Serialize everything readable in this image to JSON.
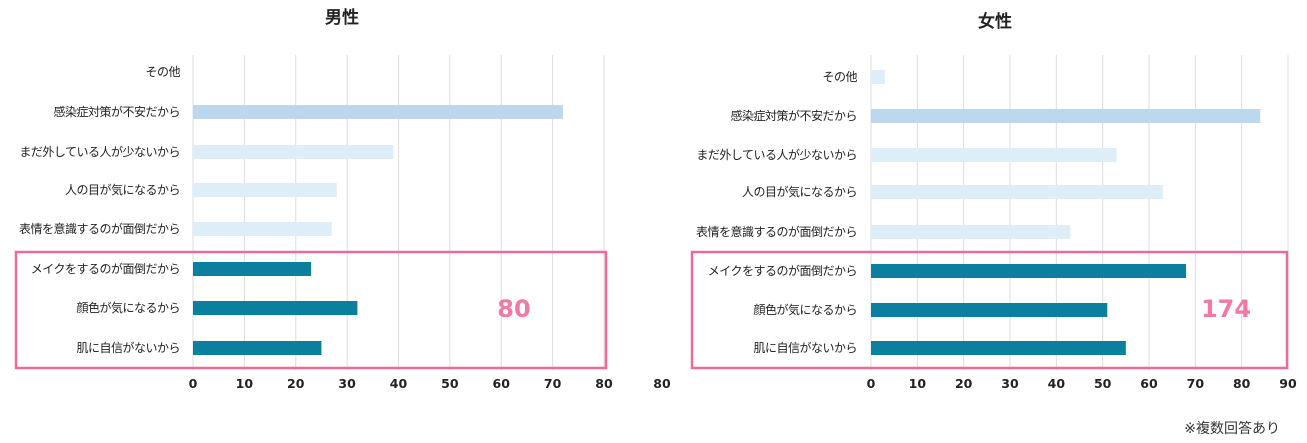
{
  "note": "※複数回答あり",
  "colors": {
    "infection": "#bdd7ee",
    "light": "#ddeef9",
    "dark": "#0b7f9e",
    "highlight": "#ee6a9b",
    "grid": "#dddddd"
  },
  "chart_data": [
    {
      "type": "bar",
      "orientation": "horizontal",
      "title": "男性",
      "categories": [
        "その他",
        "感染症対策が不安だから",
        "まだ外している人が少ないから",
        "人の目が気になるから",
        "表情を意識するのが面倒だから",
        "メイクをするのが面倒だから",
        "顔色が気になるから",
        "肌に自信がないから"
      ],
      "values": [
        0,
        72,
        39,
        28,
        27,
        23,
        32,
        25
      ],
      "xlim": [
        0,
        80
      ],
      "xticks": [
        0,
        10,
        20,
        30,
        40,
        50,
        60,
        70,
        80
      ],
      "grid": true,
      "highlight_total": "80"
    },
    {
      "type": "bar",
      "orientation": "horizontal",
      "title": "女性",
      "categories": [
        "その他",
        "感染症対策が不安だから",
        "まだ外している人が少ないから",
        "人の目が気になるから",
        "表情を意識するのが面倒だから",
        "メイクをするのが面倒だから",
        "顔色が気になるから",
        "肌に自信がないから"
      ],
      "values": [
        3,
        84,
        53,
        63,
        43,
        68,
        51,
        55
      ],
      "xlim": [
        0,
        90
      ],
      "xticks": [
        0,
        10,
        20,
        30,
        40,
        50,
        60,
        70,
        80,
        90
      ],
      "grid": true,
      "highlight_total": "174"
    }
  ]
}
